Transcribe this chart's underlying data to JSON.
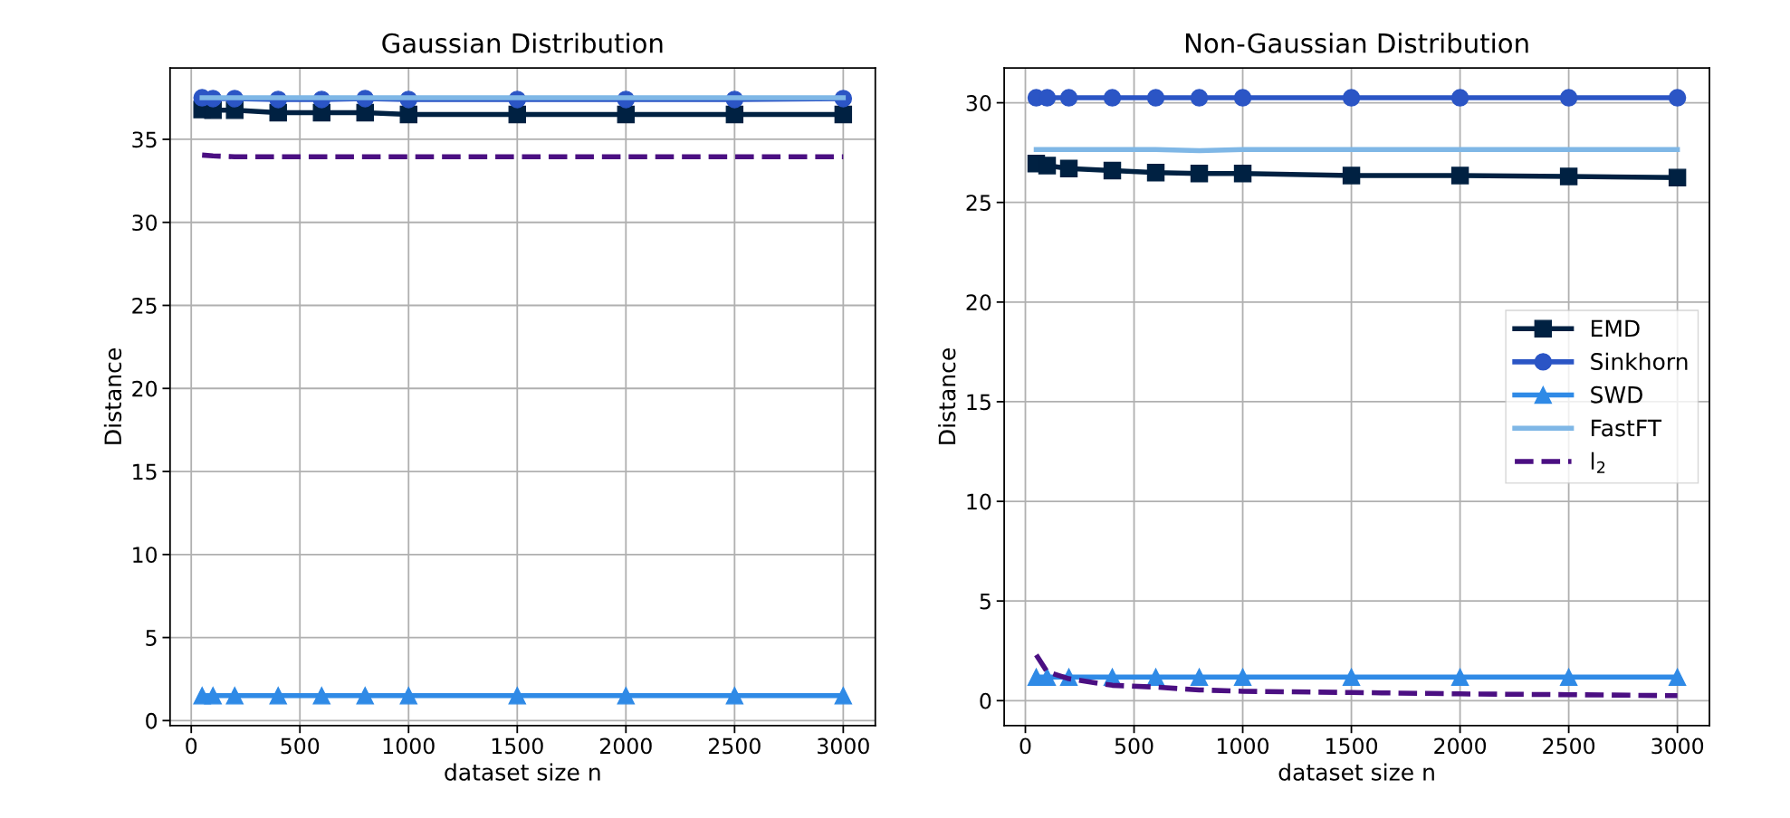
{
  "chart_data": [
    {
      "type": "line",
      "title": "Gaussian Distribution",
      "xlabel": "dataset size n",
      "ylabel": "Distance",
      "x": [
        50,
        100,
        200,
        400,
        600,
        800,
        1000,
        1500,
        2000,
        2500,
        3000
      ],
      "xlim": [
        -97.5,
        3147.5
      ],
      "xticks": [
        0,
        500,
        1000,
        1500,
        2000,
        2500,
        3000
      ],
      "ylim": [
        -0.3,
        39.3
      ],
      "yticks": [
        0,
        5,
        10,
        15,
        20,
        25,
        30,
        35
      ],
      "grid": true,
      "legend": false,
      "series": [
        {
          "color": "#002142",
          "marker": "square",
          "line_style": "solid",
          "values": [
            36.8,
            36.75,
            36.75,
            36.6,
            36.6,
            36.6,
            36.5,
            36.5,
            36.5,
            36.5,
            36.5
          ]
        },
        {
          "color": "#2b55c5",
          "marker": "circle",
          "line_style": "solid",
          "values": [
            37.5,
            37.45,
            37.45,
            37.4,
            37.4,
            37.45,
            37.4,
            37.4,
            37.4,
            37.4,
            37.45
          ]
        },
        {
          "color": "#2f8ae6",
          "marker": "triangle",
          "line_style": "solid",
          "values": [
            1.5,
            1.5,
            1.5,
            1.5,
            1.5,
            1.5,
            1.5,
            1.5,
            1.5,
            1.5,
            1.5
          ]
        },
        {
          "color": "#7fb7e6",
          "marker": "none",
          "line_style": "solid",
          "values": [
            37.5,
            37.5,
            37.5,
            37.5,
            37.5,
            37.5,
            37.5,
            37.5,
            37.5,
            37.5,
            37.5
          ]
        },
        {
          "color": "#4b0f82",
          "marker": "none",
          "line_style": "dashed",
          "values": [
            34.05,
            34.0,
            33.95,
            33.95,
            33.95,
            33.95,
            33.95,
            33.95,
            33.95,
            33.95,
            33.95
          ]
        }
      ]
    },
    {
      "type": "line",
      "title": "Non-Gaussian Distribution",
      "xlabel": "dataset size n",
      "ylabel": "Distance",
      "x": [
        50,
        100,
        200,
        400,
        600,
        800,
        1000,
        1500,
        2000,
        2500,
        3000
      ],
      "xlim": [
        -97.5,
        3147.5
      ],
      "xticks": [
        0,
        500,
        1000,
        1500,
        2000,
        2500,
        3000
      ],
      "ylim": [
        -1.25,
        31.75
      ],
      "yticks": [
        0,
        5,
        10,
        15,
        20,
        25,
        30
      ],
      "grid": true,
      "legend": "center right",
      "series": [
        {
          "name": "EMD",
          "color": "#002142",
          "marker": "square",
          "line_style": "solid",
          "values": [
            26.95,
            26.85,
            26.7,
            26.6,
            26.5,
            26.45,
            26.45,
            26.35,
            26.35,
            26.3,
            26.25
          ]
        },
        {
          "name": "Sinkhorn",
          "color": "#2b55c5",
          "marker": "circle",
          "line_style": "solid",
          "values": [
            30.25,
            30.25,
            30.25,
            30.25,
            30.25,
            30.25,
            30.25,
            30.25,
            30.25,
            30.25,
            30.25
          ]
        },
        {
          "name": "SWD",
          "color": "#2f8ae6",
          "marker": "triangle",
          "line_style": "solid",
          "values": [
            1.18,
            1.18,
            1.18,
            1.18,
            1.18,
            1.18,
            1.18,
            1.18,
            1.18,
            1.18,
            1.18
          ]
        },
        {
          "name": "FastFT",
          "color": "#7fb7e6",
          "marker": "none",
          "line_style": "solid",
          "values": [
            27.65,
            27.65,
            27.65,
            27.65,
            27.65,
            27.6,
            27.65,
            27.65,
            27.65,
            27.65,
            27.65
          ]
        },
        {
          "name": "l$_{2}$",
          "color": "#4b0f82",
          "marker": "none",
          "line_style": "dashed",
          "values": [
            2.3,
            1.45,
            1.1,
            0.77,
            0.68,
            0.54,
            0.47,
            0.41,
            0.34,
            0.3,
            0.25
          ]
        }
      ]
    }
  ]
}
